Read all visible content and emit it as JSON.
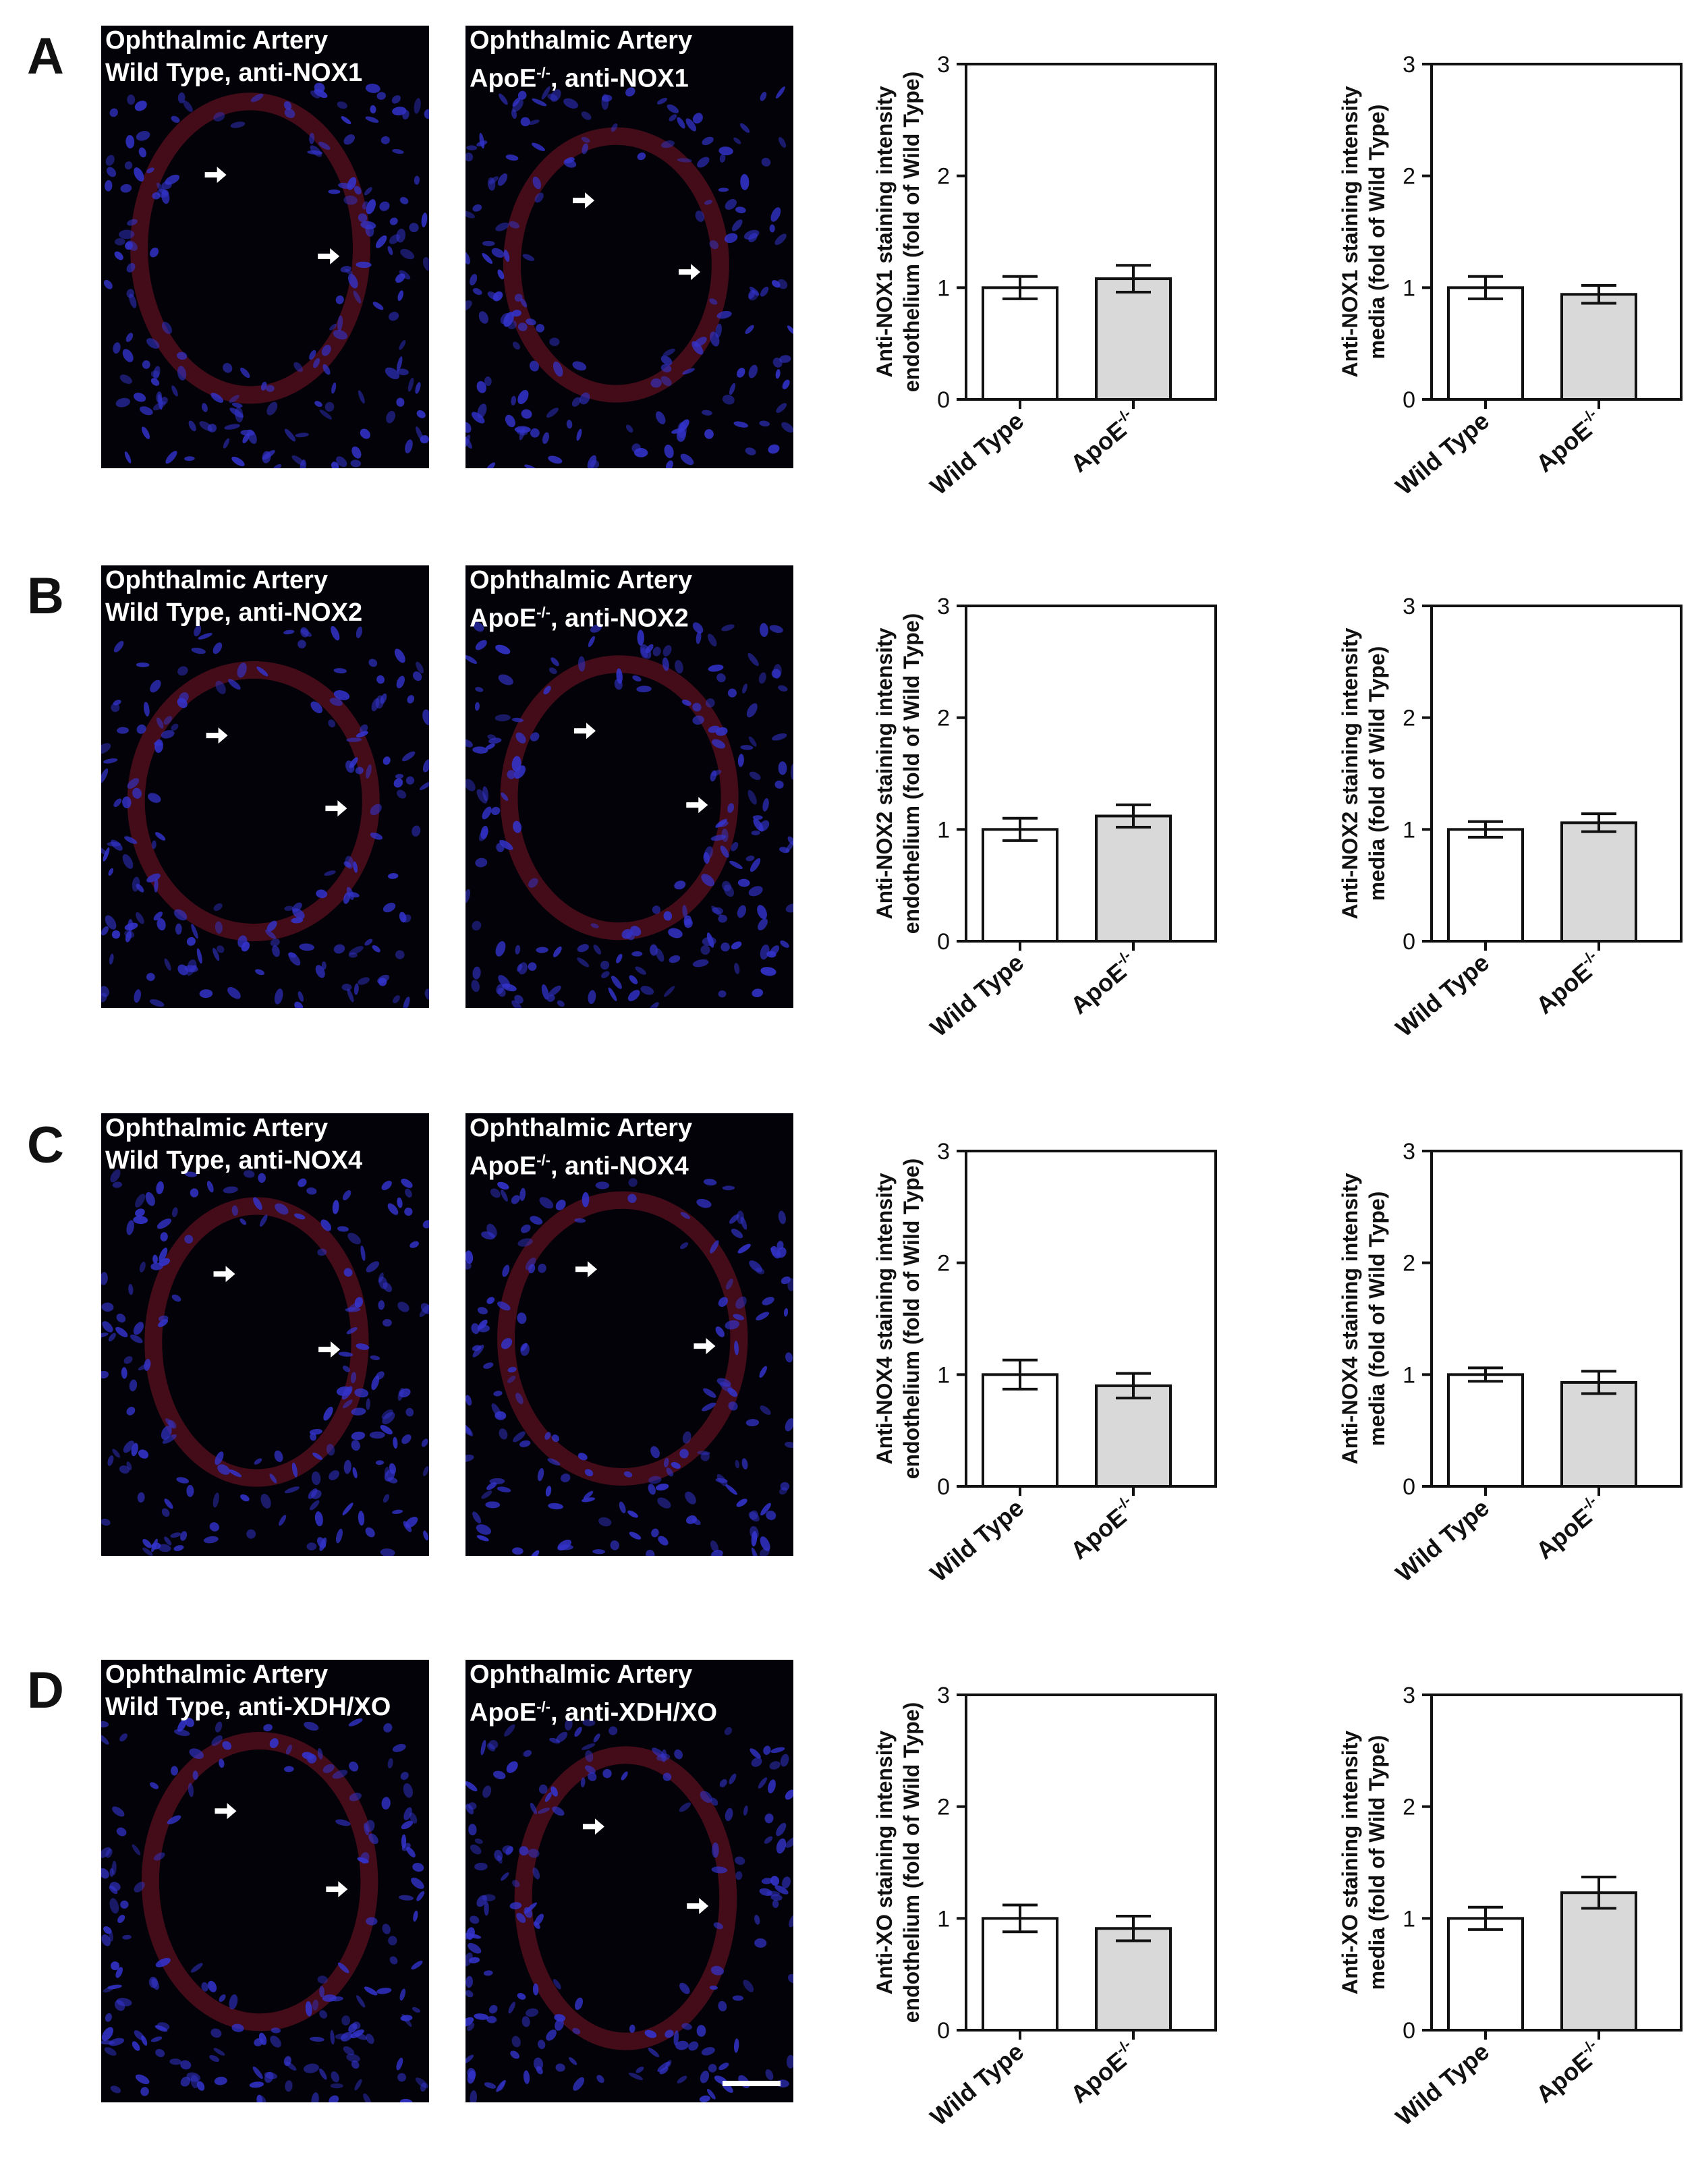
{
  "colors": {
    "wild_type_bar": "#ffffff",
    "apoe_bar": "#d9d9d9",
    "nuclei": "#3333cc",
    "stain": "#c0203a"
  },
  "rows": [
    {
      "letter": "A",
      "images": [
        {
          "title": "Ophthalmic Artery",
          "cond": "Wild Type, anti-NOX1",
          "genotype": "Wild Type",
          "antibody": "anti-NOX1"
        },
        {
          "title": "Ophthalmic Artery",
          "cond_prefix": "ApoE",
          "sup": "-/-",
          "cond_suffix": ", anti-NOX1",
          "genotype": "ApoE-/-",
          "antibody": "anti-NOX1"
        }
      ],
      "charts": [
        {
          "ylabel": [
            "Anti-NOX1 staining intensity",
            "endothelium  (fold of Wild Type)"
          ]
        },
        {
          "ylabel": [
            "Anti-NOX1 staining intensity",
            "media (fold of Wild Type)"
          ]
        }
      ]
    },
    {
      "letter": "B",
      "images": [
        {
          "title": "Ophthalmic Artery",
          "cond": "Wild Type, anti-NOX2",
          "genotype": "Wild Type",
          "antibody": "anti-NOX2"
        },
        {
          "title": "Ophthalmic Artery",
          "cond_prefix": "ApoE",
          "sup": "-/-",
          "cond_suffix": ", anti-NOX2",
          "genotype": "ApoE-/-",
          "antibody": "anti-NOX2"
        }
      ],
      "charts": [
        {
          "ylabel": [
            "Anti-NOX2  staining intensity",
            "endothelium  (fold of Wild Type)"
          ]
        },
        {
          "ylabel": [
            "Anti-NOX2  staining intensity",
            "media (fold of Wild Type)"
          ]
        }
      ]
    },
    {
      "letter": "C",
      "images": [
        {
          "title": "Ophthalmic Artery",
          "cond": "Wild Type, anti-NOX4",
          "genotype": "Wild Type",
          "antibody": "anti-NOX4"
        },
        {
          "title": "Ophthalmic Artery",
          "cond_prefix": "ApoE",
          "sup": "-/-",
          "cond_suffix": ", anti-NOX4",
          "genotype": "ApoE-/-",
          "antibody": "anti-NOX4"
        }
      ],
      "charts": [
        {
          "ylabel": [
            "Anti-NOX4 staining intensity",
            "endothelium  (fold of Wild Type)"
          ]
        },
        {
          "ylabel": [
            "Anti-NOX4 staining intensity",
            "media (fold of Wild Type)"
          ]
        }
      ]
    },
    {
      "letter": "D",
      "images": [
        {
          "title": "Ophthalmic Artery",
          "cond": "Wild Type, anti-XDH/XO",
          "genotype": "Wild Type",
          "antibody": "anti-XDH/XO"
        },
        {
          "title": "Ophthalmic Artery",
          "cond_prefix": "ApoE",
          "sup": "-/-",
          "cond_suffix": ", anti-XDH/XO",
          "genotype": "ApoE-/-",
          "antibody": "anti-XDH/XO"
        }
      ],
      "charts": [
        {
          "ylabel": [
            "Anti-XO staining intensity",
            "endothelium  (fold of Wild Type)"
          ]
        },
        {
          "ylabel": [
            "Anti-XO staining intensity",
            "media (fold of Wild Type)"
          ]
        }
      ]
    }
  ],
  "chart_data": [
    {
      "panel": "A",
      "type": "bar",
      "categories": [
        "Wild Type",
        "ApoE-/-"
      ],
      "values": [
        1.0,
        1.08
      ],
      "errors": [
        0.1,
        0.12
      ],
      "ylabel": "Anti-NOX1 staining intensity endothelium  (fold of Wild Type)",
      "ylim": [
        0,
        3
      ],
      "yticks": [
        0,
        1,
        2,
        3
      ]
    },
    {
      "panel": "A",
      "type": "bar",
      "categories": [
        "Wild Type",
        "ApoE-/-"
      ],
      "values": [
        1.0,
        0.94
      ],
      "errors": [
        0.1,
        0.08
      ],
      "ylabel": "Anti-NOX1 staining intensity media (fold of Wild Type)",
      "ylim": [
        0,
        3
      ],
      "yticks": [
        0,
        1,
        2,
        3
      ]
    },
    {
      "panel": "B",
      "type": "bar",
      "categories": [
        "Wild Type",
        "ApoE-/-"
      ],
      "values": [
        1.0,
        1.12
      ],
      "errors": [
        0.1,
        0.1
      ],
      "ylabel": "Anti-NOX2  staining intensity endothelium  (fold of Wild Type)",
      "ylim": [
        0,
        3
      ],
      "yticks": [
        0,
        1,
        2,
        3
      ]
    },
    {
      "panel": "B",
      "type": "bar",
      "categories": [
        "Wild Type",
        "ApoE-/-"
      ],
      "values": [
        1.0,
        1.06
      ],
      "errors": [
        0.07,
        0.08
      ],
      "ylabel": "Anti-NOX2  staining intensity media (fold of Wild Type)",
      "ylim": [
        0,
        3
      ],
      "yticks": [
        0,
        1,
        2,
        3
      ]
    },
    {
      "panel": "C",
      "type": "bar",
      "categories": [
        "Wild Type",
        "ApoE-/-"
      ],
      "values": [
        1.0,
        0.9
      ],
      "errors": [
        0.13,
        0.11
      ],
      "ylabel": "Anti-NOX4 staining intensity endothelium  (fold of Wild Type)",
      "ylim": [
        0,
        3
      ],
      "yticks": [
        0,
        1,
        2,
        3
      ]
    },
    {
      "panel": "C",
      "type": "bar",
      "categories": [
        "Wild Type",
        "ApoE-/-"
      ],
      "values": [
        1.0,
        0.93
      ],
      "errors": [
        0.06,
        0.1
      ],
      "ylabel": "Anti-NOX4 staining intensity media (fold of Wild Type)",
      "ylim": [
        0,
        3
      ],
      "yticks": [
        0,
        1,
        2,
        3
      ]
    },
    {
      "panel": "D",
      "type": "bar",
      "categories": [
        "Wild Type",
        "ApoE-/-"
      ],
      "values": [
        1.0,
        0.91
      ],
      "errors": [
        0.12,
        0.11
      ],
      "ylabel": "Anti-XO staining intensity endothelium  (fold of Wild Type)",
      "ylim": [
        0,
        3
      ],
      "yticks": [
        0,
        1,
        2,
        3
      ]
    },
    {
      "panel": "D",
      "type": "bar",
      "categories": [
        "Wild Type",
        "ApoE-/-"
      ],
      "values": [
        1.0,
        1.23
      ],
      "errors": [
        0.1,
        0.14
      ],
      "ylabel": "Anti-XO staining intensity media (fold of Wild Type)",
      "ylim": [
        0,
        3
      ],
      "yticks": [
        0,
        1,
        2,
        3
      ]
    }
  ]
}
